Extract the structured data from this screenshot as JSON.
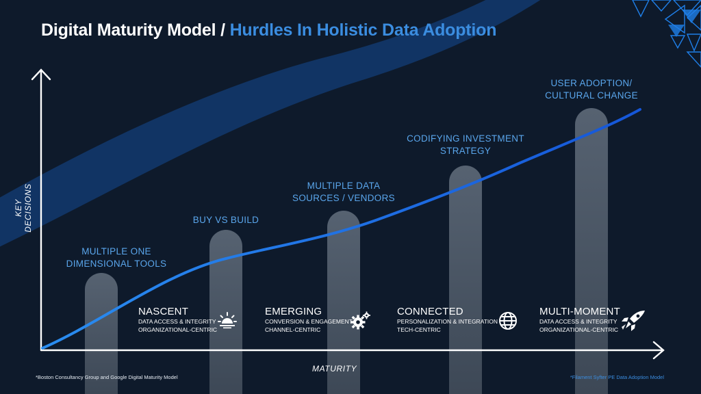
{
  "title": {
    "main": "Digital Maturity Model /",
    "accent": "Hurdles In Holistic Data Adoption"
  },
  "axes": {
    "y_label": "KEY DECISIONS",
    "x_label": "MATURITY"
  },
  "hurdles": [
    {
      "line1": "MULTIPLE ONE",
      "line2": "DIMENSIONAL TOOLS"
    },
    {
      "line1": "BUY VS BUILD",
      "line2": ""
    },
    {
      "line1": "MULTIPLE DATA",
      "line2": "SOURCES / VENDORS"
    },
    {
      "line1": "CODIFYING INVESTMENT",
      "line2": "STRATEGY"
    },
    {
      "line1": "USER ADOPTION/",
      "line2": "CULTURAL CHANGE"
    }
  ],
  "stages": [
    {
      "name": "NASCENT",
      "line1": "DATA ACCESS & INTEGRITY",
      "line2": "ORGANIZATIONAL-CENTRIC",
      "icon": "sunrise-icon"
    },
    {
      "name": "EMERGING",
      "line1": "CONVERSION & ENGAGEMENT",
      "line2": "CHANNEL-CENTRIC",
      "icon": "gears-icon"
    },
    {
      "name": "CONNECTED",
      "line1": "PERSONALIZATION & INTEGRATION",
      "line2": "TECH-CENTRIC",
      "icon": "globe-icon"
    },
    {
      "name": "MULTI-MOMENT",
      "line1": "DATA ACCESS & INTEGRITY",
      "line2": "ORGANIZATIONAL-CENTRIC",
      "icon": "rocket-icon"
    }
  ],
  "footnotes": {
    "left": "*Boston Consultancy Group and Google Digital Maturity Model",
    "right": "*Filament Syfter PE Data Adoption Model"
  },
  "colors": {
    "background": "#0e1a2b",
    "accent": "#3b8de0",
    "pillar": "#4a5563",
    "band": "#123a6e",
    "curve": "#1a6be0"
  }
}
